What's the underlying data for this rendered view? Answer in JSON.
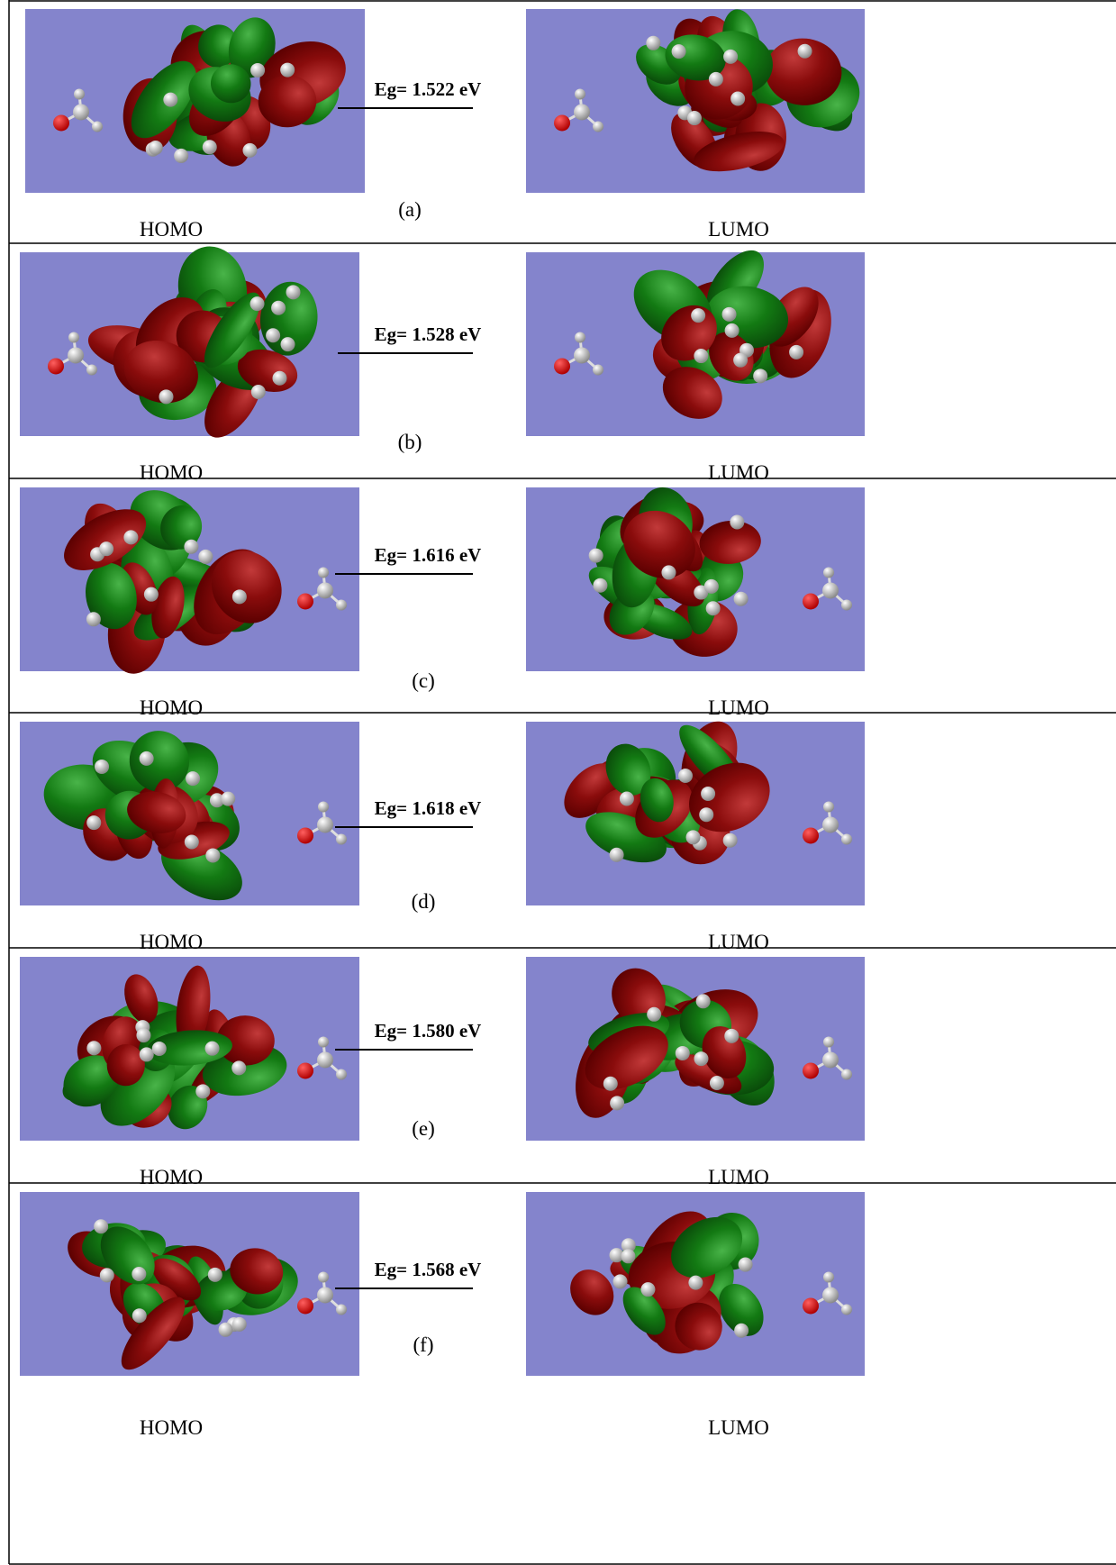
{
  "panels": [
    {
      "tag": "(a)",
      "energy_gap": "Eg= 1.522 eV",
      "left_label": "HOMO",
      "right_label": "LUMO"
    },
    {
      "tag": "(b)",
      "energy_gap": "Eg= 1.528 eV",
      "left_label": "HOMO",
      "right_label": "LUMO"
    },
    {
      "tag": "(c)",
      "energy_gap": "Eg= 1.616 eV",
      "left_label": "HOMO",
      "right_label": "LUMO"
    },
    {
      "tag": "(d)",
      "energy_gap": "Eg= 1.618 eV",
      "left_label": "HOMO",
      "right_label": "LUMO"
    },
    {
      "tag": "(e)",
      "energy_gap": "Eg= 1.580 eV",
      "left_label": "HOMO",
      "right_label": "LUMO"
    },
    {
      "tag": "(f)",
      "energy_gap": "Eg= 1.568 eV",
      "left_label": "HOMO",
      "right_label": "LUMO"
    }
  ]
}
